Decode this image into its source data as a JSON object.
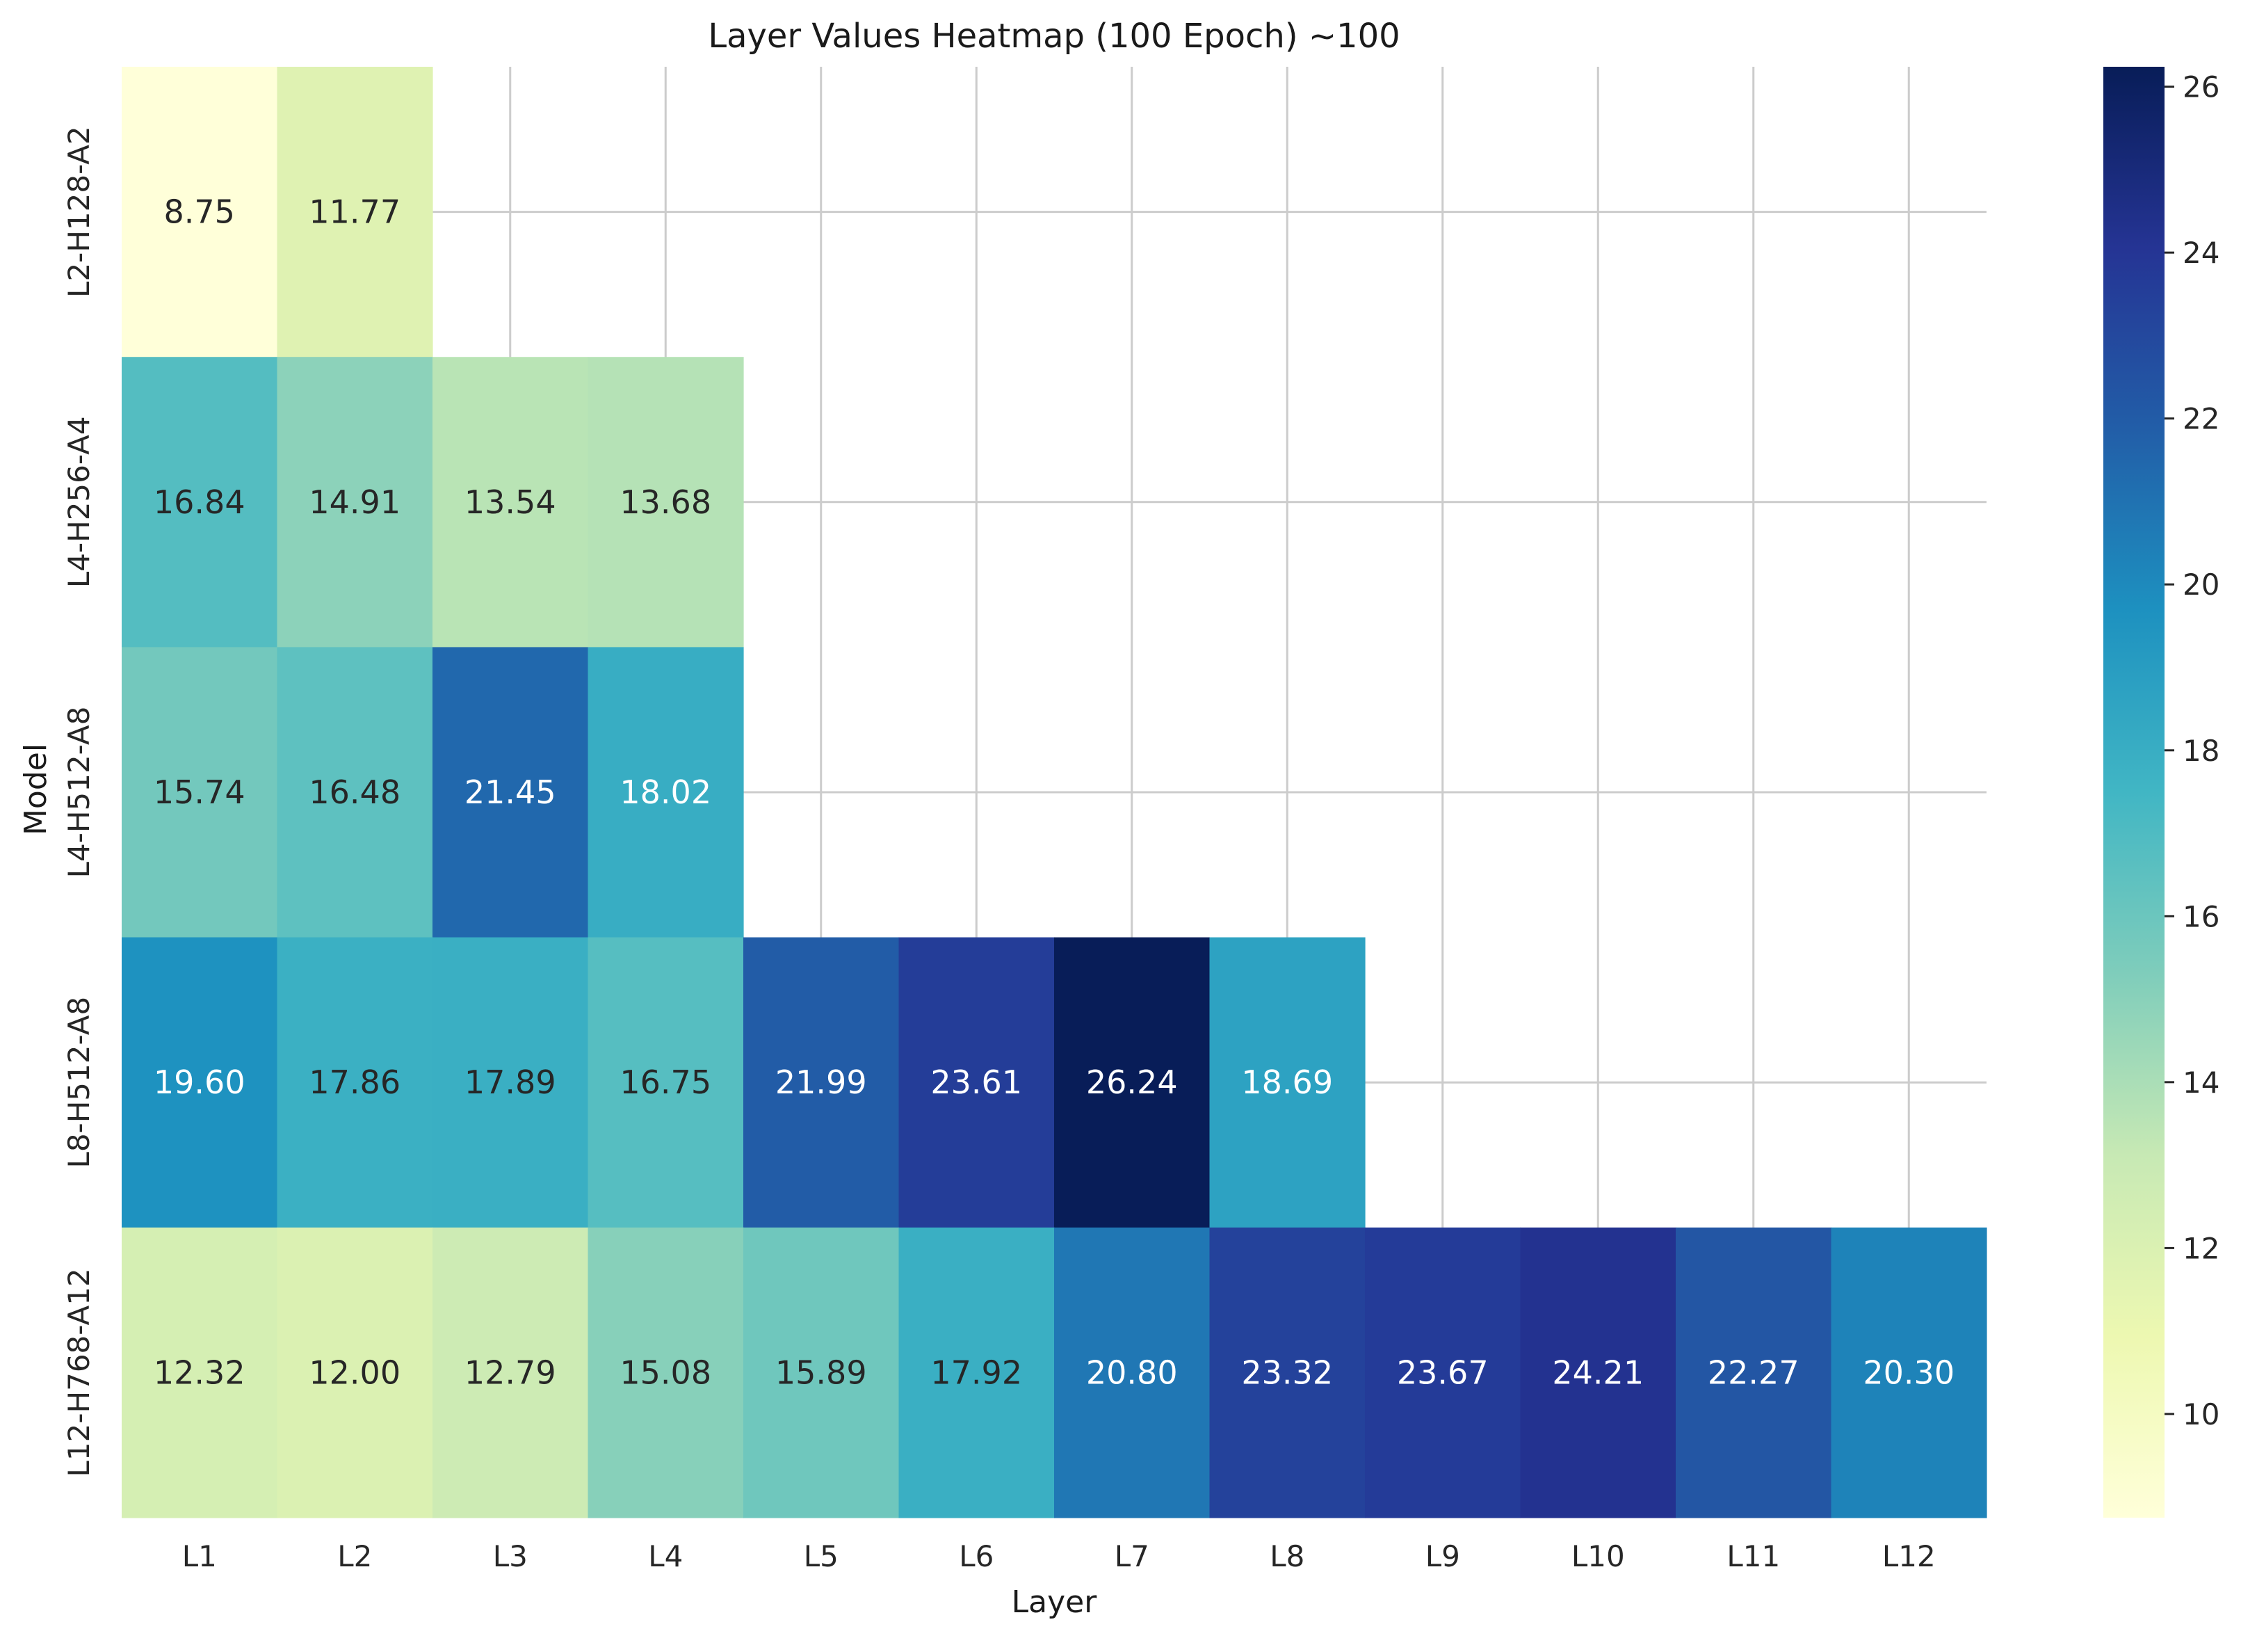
{
  "chart_data": {
    "type": "heatmap",
    "title": "Layer Values Heatmap (100 Epoch) ~100",
    "xlabel": "Layer",
    "ylabel": "Model",
    "x_categories": [
      "L1",
      "L2",
      "L3",
      "L4",
      "L5",
      "L6",
      "L7",
      "L8",
      "L9",
      "L10",
      "L11",
      "L12"
    ],
    "y_categories": [
      "L2-H128-A2",
      "L4-H256-A4",
      "L4-H512-A8",
      "L8-H512-A8",
      "L12-H768-A12"
    ],
    "values": [
      [
        8.75,
        11.77,
        null,
        null,
        null,
        null,
        null,
        null,
        null,
        null,
        null,
        null
      ],
      [
        16.84,
        14.91,
        13.54,
        13.68,
        null,
        null,
        null,
        null,
        null,
        null,
        null,
        null
      ],
      [
        15.74,
        16.48,
        21.45,
        18.02,
        null,
        null,
        null,
        null,
        null,
        null,
        null,
        null
      ],
      [
        19.6,
        17.86,
        17.89,
        16.75,
        21.99,
        23.61,
        26.24,
        18.69,
        null,
        null,
        null,
        null
      ],
      [
        12.32,
        12.0,
        12.79,
        15.08,
        15.89,
        17.92,
        20.8,
        23.32,
        23.67,
        24.21,
        22.27,
        20.3
      ]
    ],
    "value_format": "0.00",
    "colormap": "YlGnBu",
    "colorbar": {
      "range": [
        8.75,
        26.24
      ],
      "ticks": [
        10,
        12,
        14,
        16,
        18,
        20,
        22,
        24,
        26
      ]
    },
    "grid": true,
    "grid_color": "#cccccc"
  }
}
